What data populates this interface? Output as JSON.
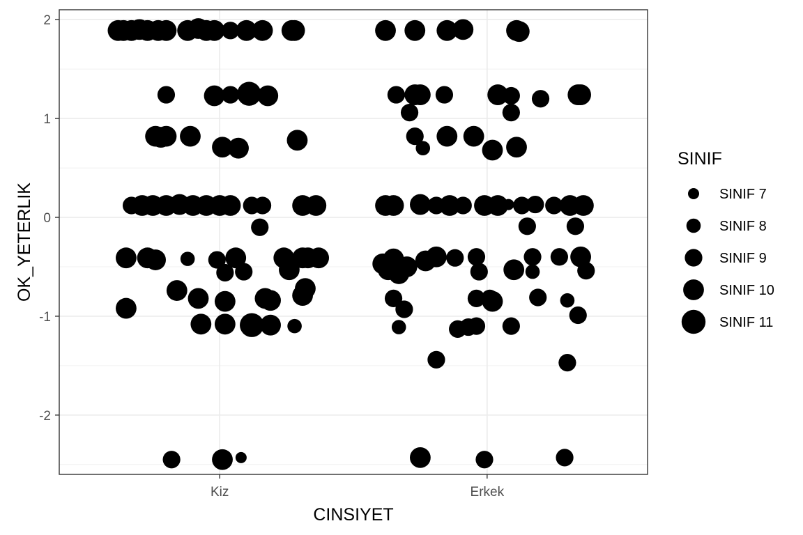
{
  "chart_data": {
    "type": "scatter",
    "title": "",
    "xlabel": "CINSIYET",
    "ylabel": "OK_YETERLIK",
    "categories": [
      "Kiz",
      "Erkek"
    ],
    "ylim": [
      -2.6,
      2.1
    ],
    "yticks": [
      -2,
      -1,
      0,
      1,
      2
    ],
    "ytick_labels": [
      "-2",
      "-1",
      "0",
      "1",
      "2"
    ],
    "grid": true,
    "point_color": "#000000",
    "legend": {
      "title": "SINIF",
      "position": "right",
      "entries": [
        {
          "label": "SINIF 7",
          "size_level": 7
        },
        {
          "label": "SINIF 8",
          "size_level": 8
        },
        {
          "label": "SINIF 9",
          "size_level": 9
        },
        {
          "label": "SINIF 10",
          "size_level": 10
        },
        {
          "label": "SINIF 11",
          "size_level": 11
        }
      ]
    },
    "series": [
      {
        "name": "Kiz",
        "points": [
          {
            "x": 0.62,
            "y": 1.89,
            "s": 10
          },
          {
            "x": 0.64,
            "y": 1.89,
            "s": 10
          },
          {
            "x": 0.67,
            "y": 1.89,
            "s": 10
          },
          {
            "x": 0.7,
            "y": 1.9,
            "s": 10
          },
          {
            "x": 0.73,
            "y": 1.89,
            "s": 10
          },
          {
            "x": 0.77,
            "y": 1.89,
            "s": 10
          },
          {
            "x": 0.8,
            "y": 1.89,
            "s": 10
          },
          {
            "x": 0.88,
            "y": 1.89,
            "s": 10
          },
          {
            "x": 0.92,
            "y": 1.91,
            "s": 10
          },
          {
            "x": 0.95,
            "y": 1.89,
            "s": 10
          },
          {
            "x": 0.98,
            "y": 1.89,
            "s": 10
          },
          {
            "x": 1.04,
            "y": 1.89,
            "s": 9
          },
          {
            "x": 1.1,
            "y": 1.89,
            "s": 10
          },
          {
            "x": 1.16,
            "y": 1.89,
            "s": 10
          },
          {
            "x": 1.27,
            "y": 1.89,
            "s": 10
          },
          {
            "x": 1.28,
            "y": 1.89,
            "s": 10
          },
          {
            "x": 0.8,
            "y": 1.24,
            "s": 9
          },
          {
            "x": 0.98,
            "y": 1.23,
            "s": 10
          },
          {
            "x": 1.04,
            "y": 1.24,
            "s": 9
          },
          {
            "x": 1.11,
            "y": 1.25,
            "s": 11
          },
          {
            "x": 1.18,
            "y": 1.23,
            "s": 10
          },
          {
            "x": 0.76,
            "y": 0.82,
            "s": 10
          },
          {
            "x": 0.78,
            "y": 0.81,
            "s": 10
          },
          {
            "x": 0.8,
            "y": 0.82,
            "s": 10
          },
          {
            "x": 0.89,
            "y": 0.82,
            "s": 10
          },
          {
            "x": 1.01,
            "y": 0.71,
            "s": 10
          },
          {
            "x": 1.07,
            "y": 0.7,
            "s": 10
          },
          {
            "x": 1.29,
            "y": 0.78,
            "s": 10
          },
          {
            "x": 0.67,
            "y": 0.12,
            "s": 9
          },
          {
            "x": 0.71,
            "y": 0.12,
            "s": 10
          },
          {
            "x": 0.75,
            "y": 0.12,
            "s": 10
          },
          {
            "x": 0.8,
            "y": 0.12,
            "s": 10
          },
          {
            "x": 0.85,
            "y": 0.13,
            "s": 10
          },
          {
            "x": 0.9,
            "y": 0.12,
            "s": 10
          },
          {
            "x": 0.95,
            "y": 0.12,
            "s": 10
          },
          {
            "x": 1.0,
            "y": 0.12,
            "s": 10
          },
          {
            "x": 1.04,
            "y": 0.12,
            "s": 10
          },
          {
            "x": 1.12,
            "y": 0.12,
            "s": 9
          },
          {
            "x": 1.16,
            "y": 0.12,
            "s": 9
          },
          {
            "x": 1.31,
            "y": 0.12,
            "s": 10
          },
          {
            "x": 1.36,
            "y": 0.12,
            "s": 10
          },
          {
            "x": 1.15,
            "y": -0.1,
            "s": 9
          },
          {
            "x": 0.65,
            "y": -0.41,
            "s": 10
          },
          {
            "x": 0.73,
            "y": -0.41,
            "s": 10
          },
          {
            "x": 0.76,
            "y": -0.43,
            "s": 10
          },
          {
            "x": 0.88,
            "y": -0.42,
            "s": 8
          },
          {
            "x": 0.99,
            "y": -0.43,
            "s": 9
          },
          {
            "x": 1.02,
            "y": -0.56,
            "s": 9
          },
          {
            "x": 1.06,
            "y": -0.41,
            "s": 10
          },
          {
            "x": 1.09,
            "y": -0.55,
            "s": 9
          },
          {
            "x": 1.24,
            "y": -0.41,
            "s": 10
          },
          {
            "x": 1.26,
            "y": -0.53,
            "s": 10
          },
          {
            "x": 1.31,
            "y": -0.41,
            "s": 10
          },
          {
            "x": 1.33,
            "y": -0.41,
            "s": 10
          },
          {
            "x": 1.37,
            "y": -0.41,
            "s": 10
          },
          {
            "x": 0.65,
            "y": -0.92,
            "s": 10
          },
          {
            "x": 0.84,
            "y": -0.74,
            "s": 10
          },
          {
            "x": 0.92,
            "y": -0.82,
            "s": 10
          },
          {
            "x": 1.02,
            "y": -0.85,
            "s": 10
          },
          {
            "x": 1.17,
            "y": -0.82,
            "s": 10
          },
          {
            "x": 1.19,
            "y": -0.84,
            "s": 10
          },
          {
            "x": 1.31,
            "y": -0.79,
            "s": 10
          },
          {
            "x": 1.32,
            "y": -0.72,
            "s": 10
          },
          {
            "x": 0.93,
            "y": -1.08,
            "s": 10
          },
          {
            "x": 1.02,
            "y": -1.08,
            "s": 10
          },
          {
            "x": 1.12,
            "y": -1.09,
            "s": 11
          },
          {
            "x": 1.19,
            "y": -1.09,
            "s": 10
          },
          {
            "x": 1.28,
            "y": -1.1,
            "s": 8
          },
          {
            "x": 0.82,
            "y": -2.45,
            "s": 9
          },
          {
            "x": 1.01,
            "y": -2.45,
            "s": 10
          },
          {
            "x": 1.08,
            "y": -2.43,
            "s": 7
          }
        ]
      },
      {
        "name": "Erkek",
        "points": [
          {
            "x": 1.62,
            "y": 1.89,
            "s": 10
          },
          {
            "x": 1.73,
            "y": 1.89,
            "s": 10
          },
          {
            "x": 1.85,
            "y": 1.89,
            "s": 10
          },
          {
            "x": 1.91,
            "y": 1.9,
            "s": 10
          },
          {
            "x": 2.11,
            "y": 1.89,
            "s": 10
          },
          {
            "x": 2.12,
            "y": 1.88,
            "s": 10
          },
          {
            "x": 1.66,
            "y": 1.24,
            "s": 9
          },
          {
            "x": 1.73,
            "y": 1.24,
            "s": 10
          },
          {
            "x": 1.75,
            "y": 1.24,
            "s": 10
          },
          {
            "x": 1.84,
            "y": 1.24,
            "s": 9
          },
          {
            "x": 2.04,
            "y": 1.24,
            "s": 10
          },
          {
            "x": 2.09,
            "y": 1.23,
            "s": 9
          },
          {
            "x": 2.2,
            "y": 1.2,
            "s": 9
          },
          {
            "x": 2.34,
            "y": 1.24,
            "s": 10
          },
          {
            "x": 2.35,
            "y": 1.24,
            "s": 10
          },
          {
            "x": 1.71,
            "y": 1.06,
            "s": 9
          },
          {
            "x": 2.09,
            "y": 1.06,
            "s": 9
          },
          {
            "x": 1.73,
            "y": 0.82,
            "s": 9
          },
          {
            "x": 1.85,
            "y": 0.82,
            "s": 10
          },
          {
            "x": 1.95,
            "y": 0.82,
            "s": 10
          },
          {
            "x": 1.76,
            "y": 0.7,
            "s": 8
          },
          {
            "x": 2.02,
            "y": 0.68,
            "s": 10
          },
          {
            "x": 2.11,
            "y": 0.71,
            "s": 10
          },
          {
            "x": 1.62,
            "y": 0.12,
            "s": 10
          },
          {
            "x": 1.65,
            "y": 0.12,
            "s": 10
          },
          {
            "x": 1.75,
            "y": 0.13,
            "s": 10
          },
          {
            "x": 1.81,
            "y": 0.12,
            "s": 9
          },
          {
            "x": 1.86,
            "y": 0.12,
            "s": 10
          },
          {
            "x": 1.91,
            "y": 0.12,
            "s": 9
          },
          {
            "x": 1.99,
            "y": 0.12,
            "s": 10
          },
          {
            "x": 2.04,
            "y": 0.12,
            "s": 10
          },
          {
            "x": 2.08,
            "y": 0.13,
            "s": 7
          },
          {
            "x": 2.13,
            "y": 0.12,
            "s": 9
          },
          {
            "x": 2.18,
            "y": 0.13,
            "s": 9
          },
          {
            "x": 2.25,
            "y": 0.12,
            "s": 9
          },
          {
            "x": 2.31,
            "y": 0.12,
            "s": 10
          },
          {
            "x": 2.36,
            "y": 0.12,
            "s": 10
          },
          {
            "x": 2.15,
            "y": -0.09,
            "s": 9
          },
          {
            "x": 2.33,
            "y": -0.09,
            "s": 9
          },
          {
            "x": 1.61,
            "y": -0.47,
            "s": 10
          },
          {
            "x": 1.63,
            "y": -0.53,
            "s": 10
          },
          {
            "x": 1.65,
            "y": -0.42,
            "s": 10
          },
          {
            "x": 1.67,
            "y": -0.57,
            "s": 10
          },
          {
            "x": 1.7,
            "y": -0.5,
            "s": 10
          },
          {
            "x": 1.77,
            "y": -0.44,
            "s": 10
          },
          {
            "x": 1.81,
            "y": -0.4,
            "s": 10
          },
          {
            "x": 1.88,
            "y": -0.41,
            "s": 9
          },
          {
            "x": 1.96,
            "y": -0.4,
            "s": 9
          },
          {
            "x": 1.97,
            "y": -0.55,
            "s": 9
          },
          {
            "x": 2.1,
            "y": -0.53,
            "s": 10
          },
          {
            "x": 2.17,
            "y": -0.4,
            "s": 9
          },
          {
            "x": 2.17,
            "y": -0.55,
            "s": 8
          },
          {
            "x": 2.27,
            "y": -0.4,
            "s": 9
          },
          {
            "x": 2.35,
            "y": -0.4,
            "s": 10
          },
          {
            "x": 2.37,
            "y": -0.54,
            "s": 9
          },
          {
            "x": 1.65,
            "y": -0.82,
            "s": 9
          },
          {
            "x": 1.69,
            "y": -0.93,
            "s": 9
          },
          {
            "x": 1.67,
            "y": -1.11,
            "s": 8
          },
          {
            "x": 1.81,
            "y": -1.44,
            "s": 9
          },
          {
            "x": 1.96,
            "y": -0.82,
            "s": 9
          },
          {
            "x": 2.01,
            "y": -0.82,
            "s": 9
          },
          {
            "x": 2.02,
            "y": -0.85,
            "s": 10
          },
          {
            "x": 2.19,
            "y": -0.81,
            "s": 9
          },
          {
            "x": 2.3,
            "y": -0.84,
            "s": 8
          },
          {
            "x": 2.34,
            "y": -0.99,
            "s": 9
          },
          {
            "x": 1.89,
            "y": -1.13,
            "s": 9
          },
          {
            "x": 1.93,
            "y": -1.11,
            "s": 9
          },
          {
            "x": 1.96,
            "y": -1.1,
            "s": 9
          },
          {
            "x": 2.09,
            "y": -1.1,
            "s": 9
          },
          {
            "x": 2.3,
            "y": -1.47,
            "s": 9
          },
          {
            "x": 1.75,
            "y": -2.43,
            "s": 10
          },
          {
            "x": 1.99,
            "y": -2.45,
            "s": 9
          },
          {
            "x": 2.29,
            "y": -2.43,
            "s": 9
          }
        ]
      }
    ]
  }
}
